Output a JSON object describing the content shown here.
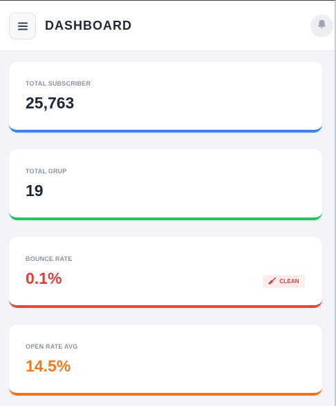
{
  "header": {
    "title": "DASHBOARD",
    "menu_icon": "hamburger-menu-icon",
    "bell_icon": "bell-icon"
  },
  "cards": [
    {
      "label": "TOTAL SUBSCRIBER",
      "value": "25,763",
      "accent": "#3b82f6"
    },
    {
      "label": "TOTAL GRUP",
      "value": "19",
      "accent": "#22c55e"
    },
    {
      "label": "BOUNCE RATE",
      "value": "0.1%",
      "accent": "#ef4444",
      "badge": {
        "label": "CLEAN",
        "icon": "broom-icon"
      }
    },
    {
      "label": "OPEN RATE AVG",
      "value": "14.5%",
      "accent": "#f97316"
    }
  ]
}
